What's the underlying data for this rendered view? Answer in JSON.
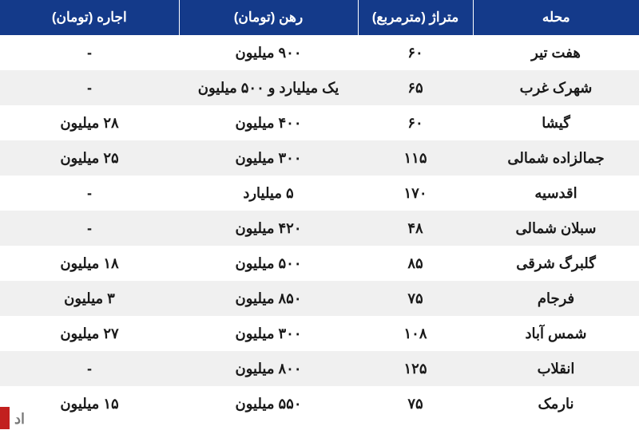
{
  "table": {
    "header_bg": "#143a8a",
    "header_fg": "#ffffff",
    "row_odd_bg": "#ffffff",
    "row_even_bg": "#f0f0f0",
    "text_color": "#1a1a1a",
    "font_size_header": 17,
    "font_size_cell": 18,
    "columns": [
      {
        "key": "district",
        "label": "محله",
        "width": "26%"
      },
      {
        "key": "area",
        "label": "متراژ (مترمربع)",
        "width": "18%"
      },
      {
        "key": "deposit",
        "label": "رهن (تومان)",
        "width": "28%"
      },
      {
        "key": "rent",
        "label": "اجاره (تومان)",
        "width": "28%"
      }
    ],
    "rows": [
      {
        "district": "هفت تیر",
        "area": "۶۰",
        "deposit": "۹۰۰ میلیون",
        "rent": "-"
      },
      {
        "district": "شهرک غرب",
        "area": "۶۵",
        "deposit": "یک میلیارد و ۵۰۰ میلیون",
        "rent": "-"
      },
      {
        "district": "گیشا",
        "area": "۶۰",
        "deposit": "۴۰۰ میلیون",
        "rent": "۲۸ میلیون"
      },
      {
        "district": "جمالزاده شمالی",
        "area": "۱۱۵",
        "deposit": "۳۰۰ میلیون",
        "rent": "۲۵ میلیون"
      },
      {
        "district": "اقدسیه",
        "area": "۱۷۰",
        "deposit": "۵ میلیارد",
        "rent": "-"
      },
      {
        "district": "سبلان شمالی",
        "area": "۴۸",
        "deposit": "۴۲۰ میلیون",
        "rent": "-"
      },
      {
        "district": "گلبرگ شرقی",
        "area": "۸۵",
        "deposit": "۵۰۰ میلیون",
        "rent": "۱۸ میلیون"
      },
      {
        "district": "فرجام",
        "area": "۷۵",
        "deposit": "۸۵۰ میلیون",
        "rent": "۳ میلیون"
      },
      {
        "district": "شمس آباد",
        "area": "۱۰۸",
        "deposit": "۳۰۰ میلیون",
        "rent": "۲۷ میلیون"
      },
      {
        "district": "انقلاب",
        "area": "۱۲۵",
        "deposit": "۸۰۰ میلیون",
        "rent": "-"
      },
      {
        "district": "نارمک",
        "area": "۷۵",
        "deposit": "۵۵۰ میلیون",
        "rent": "۱۵ میلیون"
      }
    ]
  },
  "watermark": {
    "text": "اد",
    "bar_color": "#c2201f"
  }
}
